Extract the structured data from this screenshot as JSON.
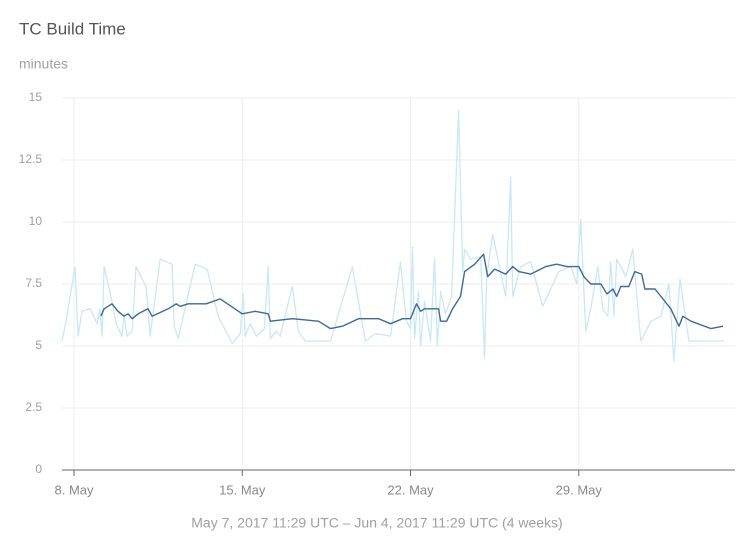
{
  "chart_data": {
    "type": "line",
    "title": "TC Build Time",
    "subtitle": "minutes",
    "xlabel": "May 7, 2017 11:29 UTC – Jun 4, 2017 11:29 UTC (4 weeks)",
    "xlim": [
      7.5,
      35.5
    ],
    "xticks": [
      {
        "value": 8,
        "label": "8. May"
      },
      {
        "value": 15,
        "label": "15. May"
      },
      {
        "value": 22,
        "label": "22. May"
      },
      {
        "value": 29,
        "label": "29. May"
      }
    ],
    "ylim": [
      0,
      15
    ],
    "yticks": [
      0,
      2.5,
      5,
      7.5,
      10,
      12.5,
      15
    ],
    "grid": true,
    "series": [
      {
        "color": "#c9e8f5",
        "x": [
          7.5,
          7.67,
          8.04,
          8.17,
          8.33,
          8.67,
          8.96,
          9.08,
          9.17,
          9.25,
          9.58,
          9.75,
          10.0,
          10.08,
          10.2,
          10.42,
          10.58,
          11.0,
          11.17,
          11.58,
          12.08,
          12.17,
          12.33,
          13.04,
          13.54,
          14.0,
          14.58,
          14.92,
          15.04,
          15.12,
          15.33,
          15.58,
          15.92,
          16.08,
          16.17,
          16.42,
          16.58,
          17.08,
          17.33,
          17.62,
          18.67,
          19.58,
          20.12,
          20.54,
          21.17,
          21.58,
          21.83,
          22.0,
          22.08,
          22.17,
          22.33,
          22.42,
          22.58,
          22.83,
          23.0,
          23.12,
          23.25,
          23.46,
          23.71,
          24.0,
          24.17,
          24.25,
          24.5,
          24.92,
          25.08,
          25.17,
          25.42,
          25.96,
          26.17,
          26.25,
          26.58,
          27.0,
          27.5,
          28.17,
          28.67,
          28.92,
          29.08,
          29.29,
          29.5,
          29.79,
          30.0,
          30.21,
          30.33,
          30.46,
          30.58,
          30.96,
          31.25,
          31.58,
          32.0,
          32.42,
          32.75,
          32.96,
          33.21,
          33.58,
          34.08,
          35.04
        ],
        "values": [
          5.2,
          6.0,
          8.2,
          5.4,
          6.4,
          6.5,
          5.9,
          6.5,
          5.4,
          8.2,
          6.8,
          5.9,
          5.4,
          6.3,
          5.4,
          5.6,
          8.2,
          7.4,
          5.4,
          8.5,
          8.3,
          5.8,
          5.3,
          8.3,
          8.1,
          6.2,
          5.1,
          5.5,
          7.1,
          5.4,
          5.9,
          5.4,
          5.7,
          8.2,
          5.3,
          5.6,
          5.4,
          7.4,
          5.6,
          5.2,
          5.2,
          8.2,
          5.2,
          5.5,
          5.4,
          8.4,
          6.0,
          5.7,
          9.0,
          5.3,
          7.2,
          5.0,
          6.8,
          5.2,
          8.5,
          5.0,
          7.2,
          6.3,
          7.0,
          14.5,
          8.0,
          8.9,
          8.5,
          8.6,
          4.5,
          7.8,
          9.5,
          7.0,
          11.8,
          7.0,
          8.2,
          8.4,
          6.6,
          8.0,
          8.2,
          7.5,
          10.1,
          5.6,
          6.5,
          8.2,
          6.5,
          6.2,
          8.4,
          6.2,
          8.5,
          7.8,
          8.9,
          5.2,
          6.0,
          6.2,
          7.5,
          4.4,
          7.7,
          5.2,
          5.2,
          5.2
        ]
      },
      {
        "color": "#3b6a9a",
        "x": [
          9.12,
          9.25,
          9.58,
          9.83,
          10.08,
          10.25,
          10.42,
          10.67,
          11.08,
          11.25,
          11.92,
          12.25,
          12.42,
          12.75,
          13.5,
          14.08,
          15.0,
          15.54,
          16.08,
          16.17,
          17.08,
          18.17,
          18.67,
          19.17,
          19.83,
          20.67,
          21.17,
          21.67,
          22.0,
          22.25,
          22.42,
          22.58,
          23.17,
          23.25,
          23.5,
          23.75,
          24.08,
          24.25,
          24.67,
          25.04,
          25.21,
          25.5,
          25.96,
          26.25,
          26.5,
          27.0,
          27.62,
          28.08,
          28.5,
          29.0,
          29.21,
          29.5,
          29.92,
          30.17,
          30.42,
          30.58,
          30.75,
          31.08,
          31.33,
          31.62,
          31.75,
          32.17,
          32.83,
          33.17,
          33.33,
          33.67,
          34.5,
          35.0
        ],
        "values": [
          6.2,
          6.5,
          6.7,
          6.4,
          6.2,
          6.3,
          6.1,
          6.3,
          6.5,
          6.2,
          6.5,
          6.7,
          6.6,
          6.7,
          6.7,
          6.9,
          6.3,
          6.4,
          6.3,
          6.0,
          6.1,
          6.0,
          5.7,
          5.8,
          6.1,
          6.1,
          5.9,
          6.1,
          6.1,
          6.7,
          6.4,
          6.5,
          6.5,
          6.0,
          6.0,
          6.5,
          7.0,
          8.0,
          8.3,
          8.7,
          7.8,
          8.1,
          7.9,
          8.2,
          8.0,
          7.9,
          8.2,
          8.3,
          8.2,
          8.2,
          7.8,
          7.5,
          7.5,
          7.1,
          7.3,
          7.0,
          7.4,
          7.4,
          8.0,
          7.9,
          7.3,
          7.3,
          6.5,
          5.8,
          6.2,
          6.0,
          5.7,
          5.8
        ]
      }
    ]
  }
}
